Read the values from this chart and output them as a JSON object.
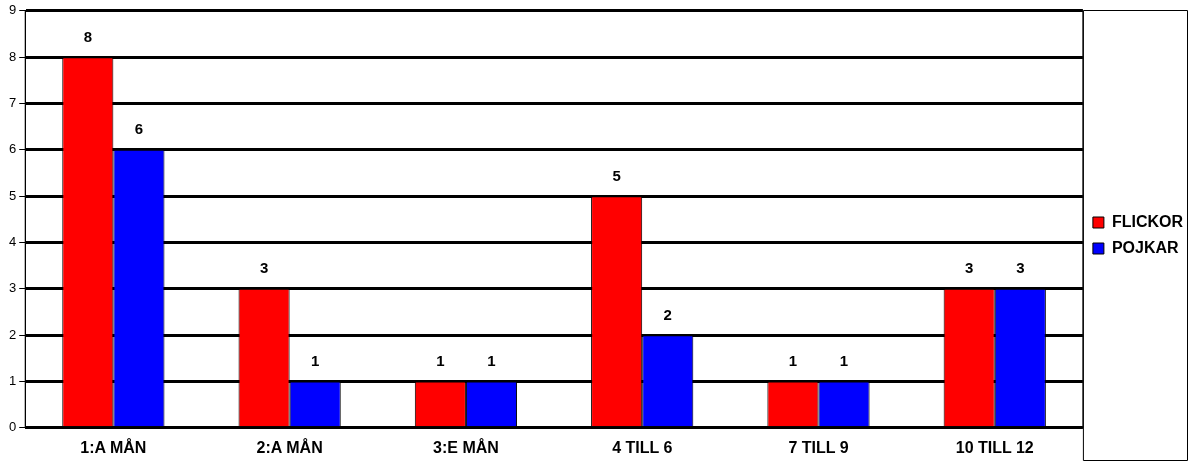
{
  "chart_data": {
    "type": "bar",
    "categories": [
      "1:A MÅN",
      "2:A MÅN",
      "3:E MÅN",
      "4 TILL 6",
      "7 TILL 9",
      "10 TILL 12"
    ],
    "series": [
      {
        "name": "FLICKOR",
        "color": "#ff0000",
        "values": [
          8,
          3,
          1,
          5,
          1,
          3
        ]
      },
      {
        "name": "POJKAR",
        "color": "#0000ff",
        "values": [
          6,
          1,
          1,
          2,
          1,
          3
        ]
      }
    ],
    "ylim": [
      0,
      9
    ],
    "yticks": [
      0,
      1,
      2,
      3,
      4,
      5,
      6,
      7,
      8,
      9
    ],
    "grid": "y",
    "legend": "right",
    "data_labels": true
  }
}
